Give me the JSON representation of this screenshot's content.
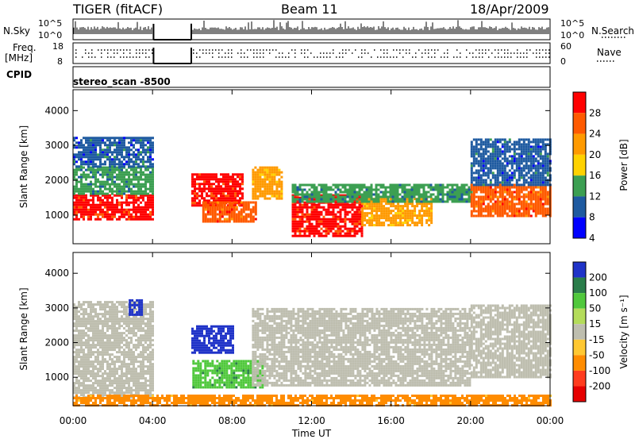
{
  "header": {
    "radar": "TIGER (fitACF)",
    "beam": "Beam 11",
    "date": "18/Apr/2009"
  },
  "strips": {
    "nsky_label": "N.Sky",
    "nsky_ticks": [
      "10^5",
      "10^0"
    ],
    "nsearch_label": "N.Search",
    "nsearch_ticks": [
      "10^5",
      "10^0"
    ],
    "freq_label_line1": "Freq.",
    "freq_label_line2": "[MHz]",
    "freq_ticks": [
      "18",
      "8"
    ],
    "nave_label": "Nave",
    "nave_ticks": [
      "60",
      "0"
    ],
    "cpid_label": "CPID",
    "cpid_value": "stereo_scan -8500"
  },
  "colorbars": {
    "power": {
      "label": "Power [dB]",
      "ticks": [
        "28",
        "24",
        "20",
        "16",
        "12",
        "8",
        "4"
      ],
      "colors": [
        "#ff0000",
        "#ff5a00",
        "#ff9a00",
        "#ffd200",
        "#3c9f52",
        "#1e5aa0",
        "#0000ff"
      ]
    },
    "velocity": {
      "label": "Velocity [m s⁻¹]",
      "ticks": [
        "200",
        "100",
        "50",
        "15",
        "-15",
        "-50",
        "-100",
        "-200"
      ],
      "colors": [
        "#1f33c8",
        "#2a7d4a",
        "#50c83c",
        "#b4dc5a",
        "#bebeaf",
        "#ffc832",
        "#ff8c00",
        "#ff3c1e",
        "#e60000"
      ]
    }
  },
  "chart_data": [
    {
      "type": "heatmap",
      "title": "",
      "xlabel": "Time UT",
      "ylabel": "Slant Range [km]",
      "x_ticks": [
        "00:00",
        "04:00",
        "08:00",
        "12:00",
        "16:00",
        "20:00",
        "00:00"
      ],
      "y_ticks": [
        "4000",
        "3000",
        "2000",
        "1000"
      ],
      "xlim_hours": [
        0,
        24
      ],
      "ylim_km": [
        180,
        4600
      ],
      "quantity": "Power [dB]",
      "data_gaps_hours": [
        [
          4.05,
          5.95
        ]
      ],
      "regions": [
        {
          "t0": 0.0,
          "t1": 4.05,
          "r0": 900,
          "r1": 1600,
          "value": 26
        },
        {
          "t0": 0.0,
          "t1": 4.05,
          "r0": 1600,
          "r1": 2400,
          "value": 10
        },
        {
          "t0": 0.0,
          "t1": 4.05,
          "r0": 2400,
          "r1": 3250,
          "value": 8
        },
        {
          "t0": 5.95,
          "t1": 8.5,
          "r0": 1300,
          "r1": 2200,
          "value": 26
        },
        {
          "t0": 6.5,
          "t1": 9.2,
          "r0": 800,
          "r1": 1400,
          "value": 24
        },
        {
          "t0": 9.0,
          "t1": 10.5,
          "r0": 1500,
          "r1": 2400,
          "value": 18
        },
        {
          "t0": 11.0,
          "t1": 14.5,
          "r0": 400,
          "r1": 1600,
          "value": 26
        },
        {
          "t0": 14.5,
          "t1": 18.0,
          "r0": 700,
          "r1": 1500,
          "value": 18
        },
        {
          "t0": 11.0,
          "t1": 20.0,
          "r0": 1400,
          "r1": 1900,
          "value": 10
        },
        {
          "t0": 20.0,
          "t1": 24.0,
          "r0": 1000,
          "r1": 1900,
          "value": 24
        },
        {
          "t0": 20.0,
          "t1": 24.0,
          "r0": 1900,
          "r1": 3200,
          "value": 8
        }
      ]
    },
    {
      "type": "heatmap",
      "title": "",
      "xlabel": "Time UT",
      "ylabel": "Slant Range [km]",
      "x_ticks": [
        "00:00",
        "04:00",
        "08:00",
        "12:00",
        "16:00",
        "20:00",
        "00:00"
      ],
      "y_ticks": [
        "4000",
        "3000",
        "2000",
        "1000"
      ],
      "xlim_hours": [
        0,
        24
      ],
      "ylim_km": [
        180,
        4600
      ],
      "quantity": "Velocity [m s-1]",
      "data_gaps_hours": [
        [
          4.05,
          5.95
        ]
      ],
      "regions": [
        {
          "t0": 0.0,
          "t1": 4.05,
          "r0": 400,
          "r1": 3200,
          "value": 0
        },
        {
          "t0": 2.8,
          "t1": 3.4,
          "r0": 2800,
          "r1": 3250,
          "value": 220
        },
        {
          "t0": 5.95,
          "t1": 8.0,
          "r0": 1700,
          "r1": 2500,
          "value": 220
        },
        {
          "t0": 6.0,
          "t1": 9.5,
          "r0": 700,
          "r1": 1500,
          "value": 70
        },
        {
          "t0": 9.0,
          "t1": 20.0,
          "r0": 800,
          "r1": 3000,
          "value": 0
        },
        {
          "t0": 0.0,
          "t1": 24.0,
          "r0": 200,
          "r1": 500,
          "value": -40
        },
        {
          "t0": 20.0,
          "t1": 24.0,
          "r0": 1000,
          "r1": 3100,
          "value": 0
        }
      ]
    }
  ]
}
